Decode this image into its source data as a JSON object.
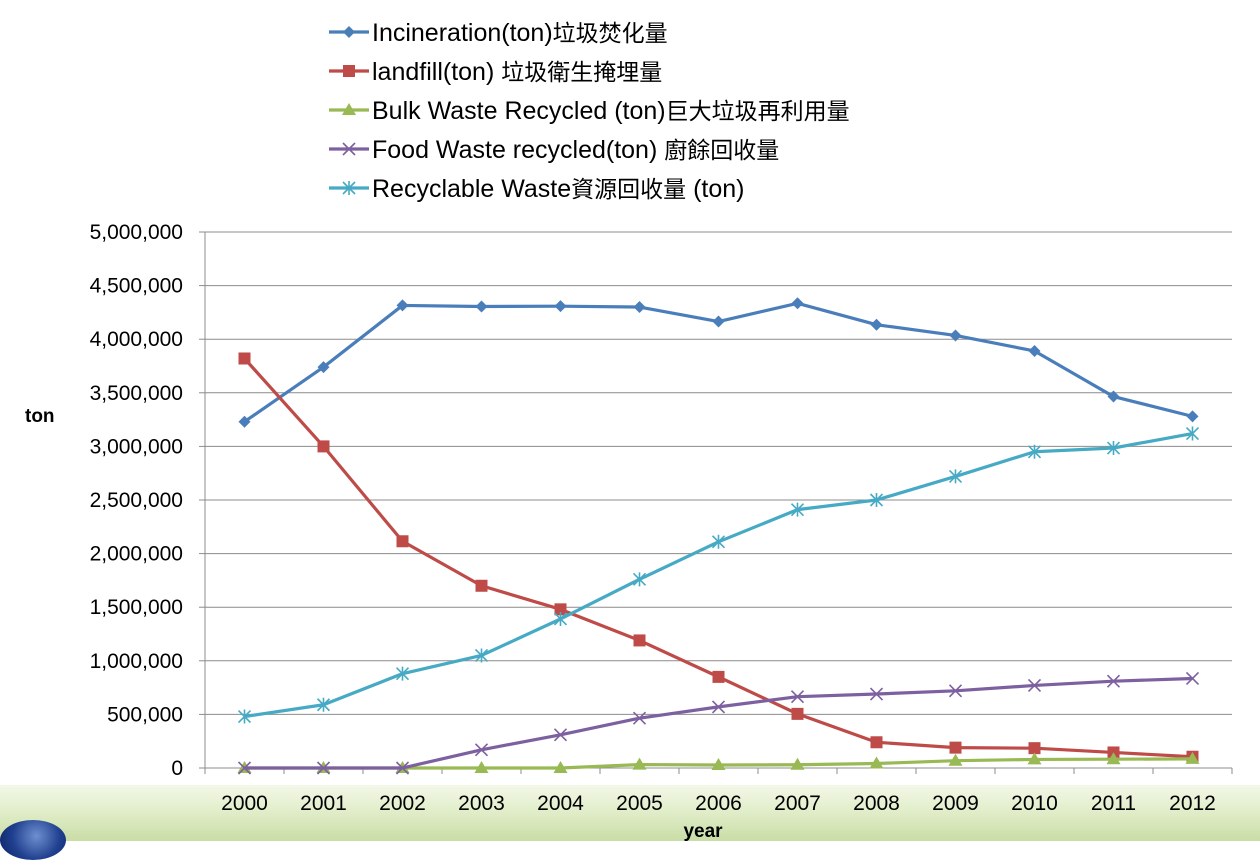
{
  "chart_data": {
    "type": "line",
    "categories": [
      "2000",
      "2001",
      "2002",
      "2003",
      "2004",
      "2005",
      "2006",
      "2007",
      "2008",
      "2009",
      "2010",
      "2011",
      "2012"
    ],
    "ylabel": "ton",
    "xlabel": "year",
    "ylim": [
      0,
      5000000
    ],
    "y_ticks": [
      "0",
      "500,000",
      "1,000,000",
      "1,500,000",
      "2,000,000",
      "2,500,000",
      "3,000,000",
      "3,500,000",
      "4,000,000",
      "4,500,000",
      "5,000,000"
    ],
    "grid": "horizontal",
    "legend_position": "top",
    "series": [
      {
        "name": "Incineration(ton)",
        "name_cjk": "垃圾焚化量",
        "color": "#4a7ebb",
        "marker": "diamond",
        "values": [
          3230000,
          3740000,
          4315000,
          4305000,
          4308000,
          4300000,
          4165000,
          4335000,
          4135000,
          4035000,
          3890000,
          3465000,
          3280000
        ]
      },
      {
        "name": "landfill(ton) ",
        "name_cjk": "垃圾衛生掩埋量",
        "color": "#be4b48",
        "marker": "square",
        "values": [
          3820000,
          3000000,
          2115000,
          1700000,
          1480000,
          1190000,
          850000,
          505000,
          240000,
          190000,
          185000,
          145000,
          105000
        ]
      },
      {
        "name": "Bulk Waste Recycled (ton)",
        "name_cjk": "巨大垃圾再利用量",
        "color": "#98b954",
        "marker": "triangle",
        "values": [
          0,
          0,
          0,
          0,
          0,
          32000,
          28000,
          30000,
          42000,
          68000,
          80000,
          82000,
          85000
        ]
      },
      {
        "name": "Food Waste recycled(ton) ",
        "name_cjk": "廚餘回收量",
        "color": "#7d60a0",
        "marker": "x",
        "values": [
          0,
          0,
          0,
          170000,
          310000,
          465000,
          570000,
          665000,
          690000,
          720000,
          770000,
          810000,
          835000
        ]
      },
      {
        "name": "Recyclable Waste",
        "name_cjk": "資源回收量",
        "name_suffix": " (ton)",
        "color": "#46aac5",
        "marker": "star",
        "values": [
          480000,
          590000,
          880000,
          1050000,
          1390000,
          1760000,
          2110000,
          2410000,
          2500000,
          2720000,
          2950000,
          2985000,
          3120000
        ]
      }
    ]
  }
}
